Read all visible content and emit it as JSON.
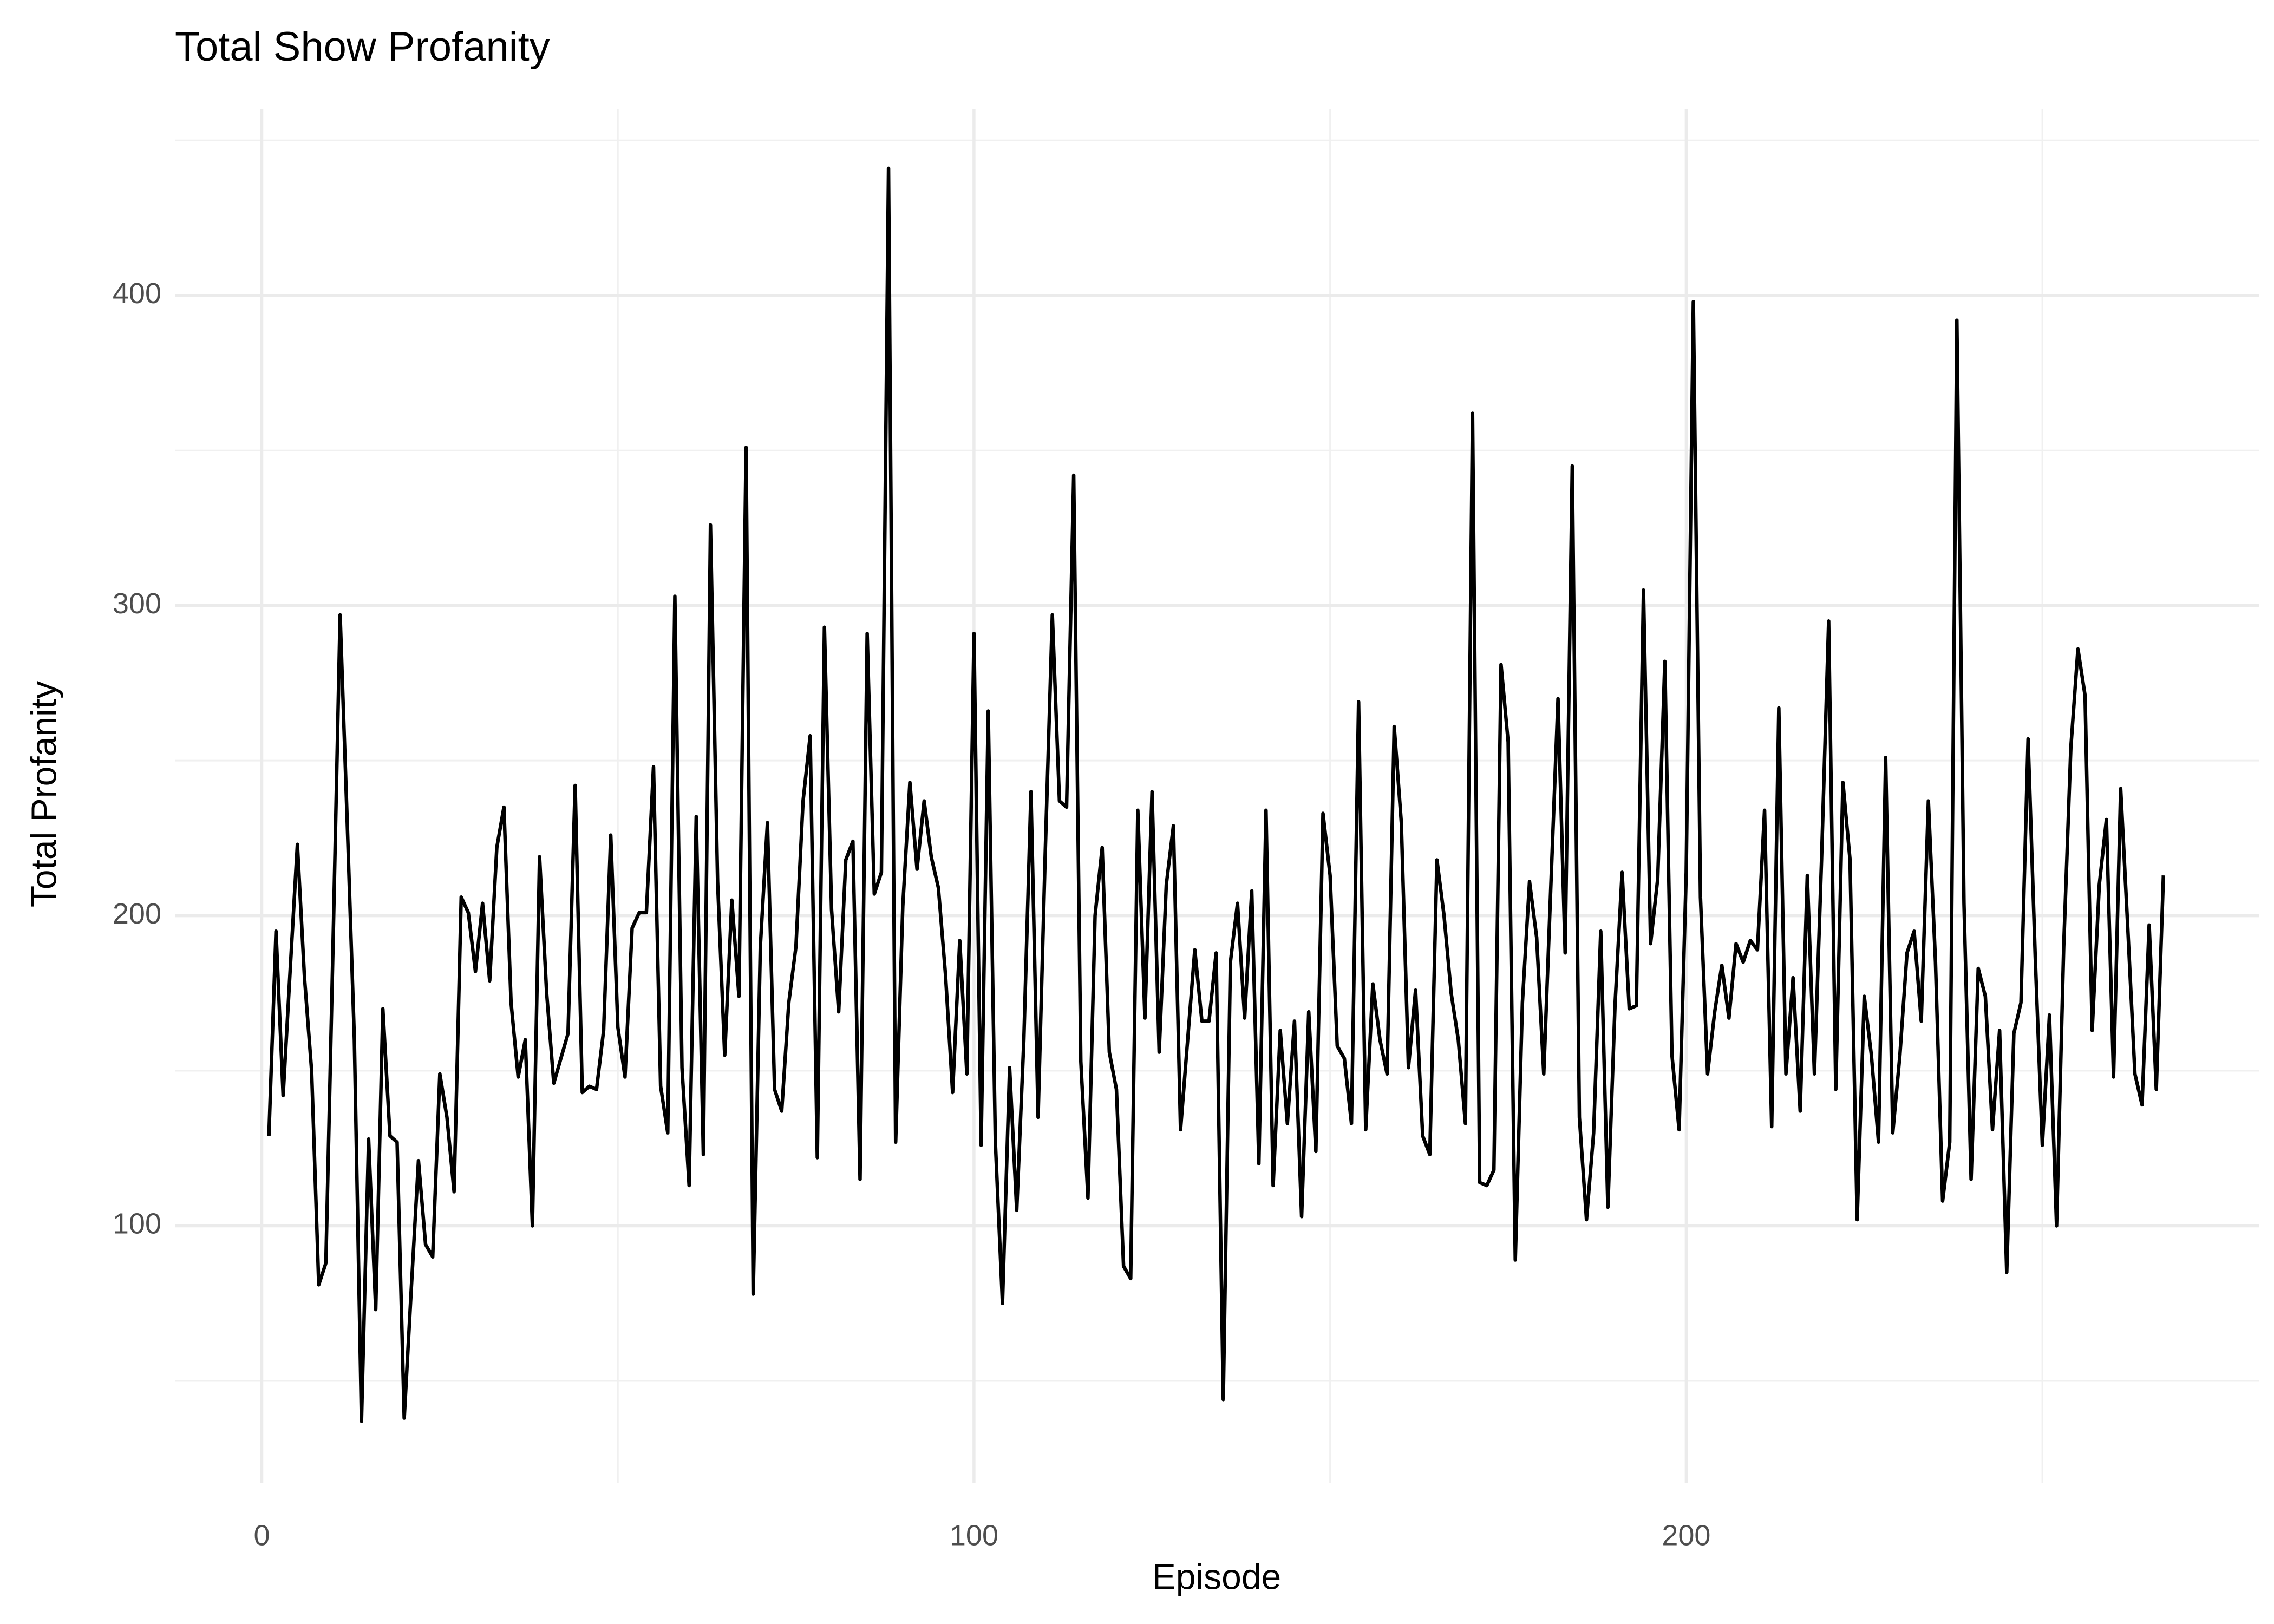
{
  "chart_data": {
    "type": "line",
    "title": "Total Show Profanity",
    "x_label": "Episode",
    "y_label": "Total Profanity",
    "x": [
      1,
      2,
      3,
      4,
      5,
      6,
      7,
      8,
      9,
      10,
      11,
      12,
      13,
      14,
      15,
      16,
      17,
      18,
      19,
      20,
      21,
      22,
      23,
      24,
      25,
      26,
      27,
      28,
      29,
      30,
      31,
      32,
      33,
      34,
      35,
      36,
      37,
      38,
      39,
      40,
      41,
      42,
      43,
      44,
      45,
      46,
      47,
      48,
      49,
      50,
      51,
      52,
      53,
      54,
      55,
      56,
      57,
      58,
      59,
      60,
      61,
      62,
      63,
      64,
      65,
      66,
      67,
      68,
      69,
      70,
      71,
      72,
      73,
      74,
      75,
      76,
      77,
      78,
      79,
      80,
      81,
      82,
      83,
      84,
      85,
      86,
      87,
      88,
      89,
      90,
      91,
      92,
      93,
      94,
      95,
      96,
      97,
      98,
      99,
      100,
      101,
      102,
      103,
      104,
      105,
      106,
      107,
      108,
      109,
      110,
      111,
      112,
      113,
      114,
      115,
      116,
      117,
      118,
      119,
      120,
      121,
      122,
      123,
      124,
      125,
      126,
      127,
      128,
      129,
      130,
      131,
      132,
      133,
      134,
      135,
      136,
      137,
      138,
      139,
      140,
      141,
      142,
      143,
      144,
      145,
      146,
      147,
      148,
      149,
      150,
      151,
      152,
      153,
      154,
      155,
      156,
      157,
      158,
      159,
      160,
      161,
      162,
      163,
      164,
      165,
      166,
      167,
      168,
      169,
      170,
      171,
      172,
      173,
      174,
      175,
      176,
      177,
      178,
      179,
      180,
      181,
      182,
      183,
      184,
      185,
      186,
      187,
      188,
      189,
      190,
      191,
      192,
      193,
      194,
      195,
      196,
      197,
      198,
      199,
      200,
      201,
      202,
      203,
      204,
      205,
      206,
      207,
      208,
      209,
      210,
      211,
      212,
      213,
      214,
      215,
      216,
      217,
      218,
      219,
      220,
      221,
      222,
      223,
      224,
      225,
      226,
      227,
      228,
      229,
      230,
      231,
      232,
      233,
      234,
      235,
      236,
      237,
      238,
      239,
      240,
      241,
      242,
      243,
      244,
      245,
      246,
      247,
      248,
      249,
      250,
      251,
      252,
      253,
      254,
      255,
      256,
      257,
      258,
      259,
      260,
      261,
      262,
      263,
      264,
      265,
      266,
      267
    ],
    "series": [
      {
        "color": "#000000",
        "values": [
          129,
          195,
          142,
          183,
          223,
          180,
          150,
          81,
          88,
          190,
          297,
          230,
          160,
          37,
          128,
          73,
          170,
          129,
          127,
          38,
          80,
          121,
          94,
          90,
          149,
          135,
          111,
          206,
          201,
          182,
          204,
          179,
          222,
          235,
          172,
          148,
          160,
          100,
          219,
          175,
          146,
          154,
          162,
          242,
          143,
          145,
          144,
          163,
          226,
          164,
          148,
          196,
          201,
          201,
          248,
          145,
          130,
          303,
          151,
          113,
          232,
          123,
          326,
          211,
          155,
          205,
          174,
          351,
          78,
          190,
          230,
          144,
          137,
          172,
          190,
          237,
          258,
          122,
          293,
          202,
          169,
          218,
          224,
          115,
          291,
          207,
          214,
          441,
          127,
          203,
          243,
          215,
          237,
          219,
          209,
          181,
          143,
          192,
          149,
          291,
          126,
          266,
          127,
          75,
          151,
          105,
          160,
          240,
          135,
          220,
          297,
          237,
          235,
          342,
          153,
          109,
          200,
          222,
          156,
          144,
          87,
          83,
          234,
          167,
          240,
          156,
          210,
          229,
          131,
          160,
          189,
          166,
          166,
          188,
          44,
          185,
          204,
          167,
          208,
          120,
          234,
          113,
          163,
          133,
          166,
          103,
          169,
          124,
          233,
          213,
          158,
          154,
          133,
          269,
          131,
          178,
          160,
          149,
          261,
          230,
          151,
          176,
          129,
          123,
          218,
          200,
          175,
          160,
          133,
          362,
          114,
          113,
          118,
          281,
          256,
          89,
          172,
          211,
          193,
          149,
          210,
          270,
          188,
          345,
          135,
          102,
          130,
          195,
          106,
          171,
          214,
          170,
          171,
          305,
          191,
          212,
          282,
          155,
          131,
          214,
          398,
          206,
          149,
          169,
          184,
          167,
          191,
          185,
          192,
          189,
          234,
          132,
          267,
          149,
          180,
          137,
          213,
          149,
          218,
          295,
          144,
          243,
          218,
          102,
          174,
          155,
          127,
          251,
          130,
          155,
          188,
          195,
          166,
          237,
          185,
          108,
          127,
          392,
          204,
          115,
          183,
          174,
          131,
          163,
          85,
          162,
          172,
          257,
          187,
          126,
          168,
          100,
          190,
          254,
          286,
          271,
          163,
          210,
          231,
          148,
          241,
          196,
          149,
          139,
          197,
          144,
          213
        ]
      }
    ],
    "xlim": [
      -12.2,
      280.4
    ],
    "ylim": [
      17,
      460
    ],
    "xticks": [
      0,
      100,
      200
    ],
    "yticks": [
      100,
      200,
      300,
      400
    ],
    "grid": true
  }
}
